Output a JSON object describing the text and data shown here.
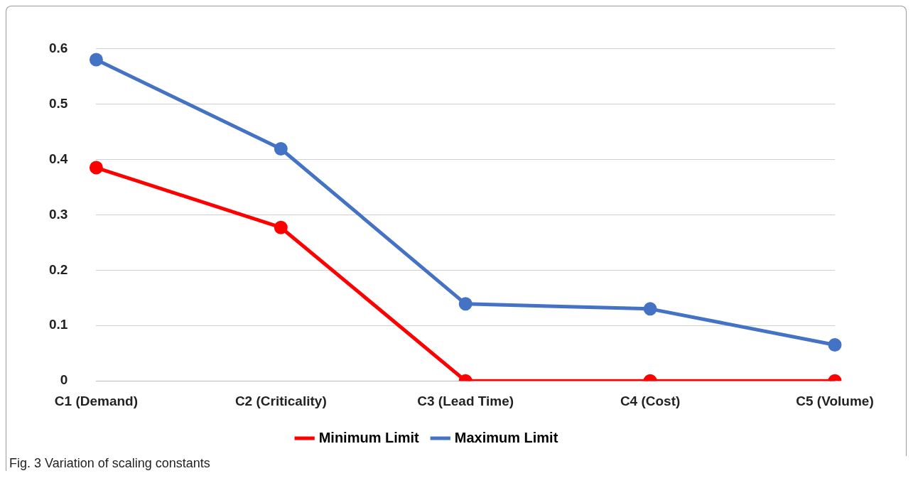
{
  "chart_data": {
    "type": "line",
    "categories": [
      "C1 (Demand)",
      "C2 (Criticality)",
      "C3 (Lead Time)",
      "C4 (Cost)",
      "C5 (Volume)"
    ],
    "series": [
      {
        "name": "Minimum Limit",
        "color": "#ff0000",
        "values": [
          0.385,
          0.277,
          0,
          0,
          0
        ]
      },
      {
        "name": "Maximum Limit",
        "color": "#4472c4",
        "values": [
          0.58,
          0.419,
          0.139,
          0.13,
          0.065
        ]
      }
    ],
    "ylim": [
      0,
      0.6
    ],
    "yticks": [
      0,
      0.1,
      0.2,
      0.3,
      0.4,
      0.5,
      0.6
    ],
    "grid": "y",
    "legend": "bottom",
    "marker": "circle",
    "line_style": "solid",
    "annotations": [
      "Fig. 3 Variation of scaling constants"
    ]
  }
}
